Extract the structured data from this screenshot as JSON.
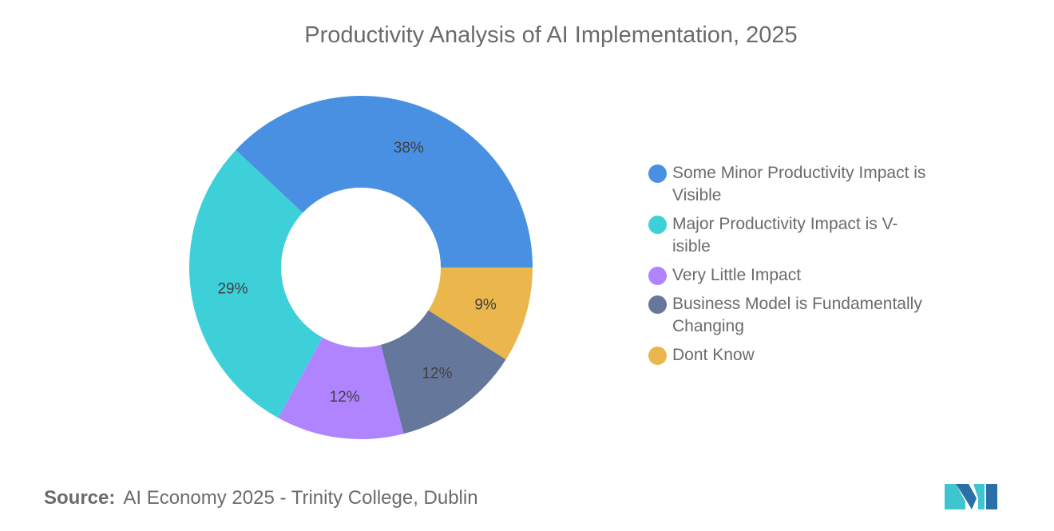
{
  "chart_data": {
    "type": "pie",
    "title": "Productivity Analysis of AI Implementation, 2025",
    "donut": true,
    "slices": [
      {
        "label": "Some Minor Productivity Impact is Visible",
        "value": 38,
        "display": "38%",
        "color": "#4a90e2"
      },
      {
        "label": "Dont Know",
        "value": 9,
        "display": "9%",
        "color": "#ebb64b"
      },
      {
        "label": "Business Model is Fundamentally Changing",
        "value": 12,
        "display": "12%",
        "color": "#65789b"
      },
      {
        "label": "Very Little Impact",
        "value": 12,
        "display": "12%",
        "color": "#b084ff"
      },
      {
        "label": "Major Productivity Impact is Visible",
        "value": 29,
        "display": "29%",
        "color": "#3ed0d9"
      }
    ],
    "legend_position": "right"
  },
  "legend": [
    {
      "text": "Some Minor Productivity Impact is Visible",
      "color": "#4a90e2"
    },
    {
      "text": "Major Productivity Impact is V-isible",
      "color": "#3ed0d9"
    },
    {
      "text": "Very Little Impact",
      "color": "#b084ff"
    },
    {
      "text": "Business Model is Fundamentally Changing",
      "color": "#65789b"
    },
    {
      "text": "Dont Know",
      "color": "#ebb64b"
    }
  ],
  "source": {
    "label": "Source:",
    "text": "AI Economy 2025 - Trinity College, Dublin"
  },
  "logo": {
    "icon": "mordor-intelligence-logo"
  }
}
